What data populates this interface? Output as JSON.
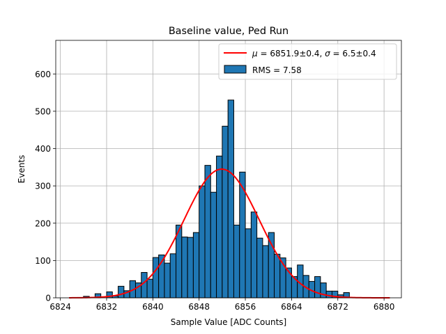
{
  "chart_data": {
    "type": "bar",
    "title": "Baseline value, Ped Run",
    "xlabel": "Sample Value [ADC Counts]",
    "ylabel": "Events",
    "xlim": [
      6823.2,
      6883.0
    ],
    "ylim": [
      0,
      690
    ],
    "xticks": [
      6824,
      6832,
      6840,
      6848,
      6856,
      6864,
      6872,
      6880
    ],
    "yticks": [
      0,
      100,
      200,
      300,
      400,
      500,
      600
    ],
    "grid": true,
    "legend_position": "top-right",
    "histogram": {
      "name": "RMS = 7.58",
      "color": "#1f77b4",
      "edge_color": "#000000",
      "bin_edges": [
        6826.0,
        6827.0,
        6828.0,
        6829.0,
        6830.0,
        6831.0,
        6832.0,
        6833.0,
        6834.0,
        6835.0,
        6836.0,
        6837.0,
        6838.0,
        6839.0,
        6840.0,
        6841.0,
        6842.0,
        6843.0,
        6844.0,
        6845.0,
        6846.0,
        6847.0,
        6848.0,
        6849.0,
        6850.0,
        6851.0,
        6852.0,
        6853.0,
        6854.0,
        6855.0,
        6856.0,
        6857.0,
        6858.0,
        6859.0,
        6860.0,
        6861.0,
        6862.0,
        6863.0,
        6864.0,
        6865.0,
        6866.0,
        6867.0,
        6868.0,
        6869.0,
        6870.0,
        6871.0,
        6872.0,
        6873.0,
        6874.0
      ],
      "counts": [
        0,
        1,
        4,
        1,
        11,
        0,
        16,
        5,
        31,
        19,
        46,
        40,
        68,
        50,
        108,
        115,
        93,
        118,
        195,
        163,
        162,
        175,
        300,
        355,
        283,
        380,
        460,
        530,
        195,
        337,
        185,
        230,
        160,
        140,
        175,
        117,
        107,
        80,
        57,
        88,
        60,
        44,
        57,
        40,
        18,
        18,
        8,
        14
      ]
    },
    "fit": {
      "name_mu": "6851.9±0.4",
      "name_sigma": "6.5±0.4",
      "color": "#ff0000",
      "mu": 6851.9,
      "sigma": 6.5,
      "amplitude": 345,
      "x_range": [
        6825.5,
        6881.0
      ]
    },
    "legend": {
      "fit_label_mu_symbol": "μ",
      "fit_label_sigma_symbol": "σ",
      "fit_label_text": " = 6851.9±0.4, ",
      "fit_label_text2": " = 6.5±0.4",
      "hist_label": "RMS = 7.58"
    }
  }
}
